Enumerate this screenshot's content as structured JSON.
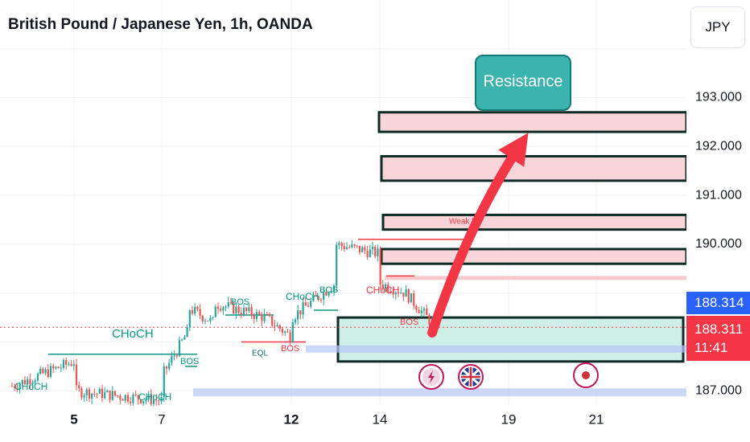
{
  "header": {
    "title": "British Pound / Japanese Yen, 1h, OANDA",
    "currency_button": "JPY"
  },
  "price_tags": {
    "last_price": "188.314",
    "current_price": "188.311",
    "countdown": "11:41"
  },
  "colors": {
    "up": "#26a69a",
    "down": "#ef5350",
    "resistance_fill": "#f8d5d8",
    "support_fill": "#cfeee8",
    "arrow": "#f23645",
    "label_teal": "#089981",
    "label_red": "#f23645",
    "callout_fill": "#3bb3ae"
  },
  "chart_data": {
    "type": "candlestick",
    "symbol": "British Pound / Japanese Yen",
    "timeframe": "1h",
    "exchange": "OANDA",
    "x_ticks": [
      "5",
      "7",
      "12",
      "14",
      "19",
      "21"
    ],
    "x_ticks_bold": [
      "5",
      "12"
    ],
    "y_ticks": [
      "193.000",
      "192.000",
      "191.000",
      "190.000",
      "187.000"
    ],
    "y_range": [
      186.8,
      194.0
    ],
    "last_price": 188.314,
    "current_price": 188.311,
    "price_path": [
      {
        "date": "2024-08-04",
        "price": 187.1
      },
      {
        "date": "2024-08-05",
        "price": 187.6
      },
      {
        "date": "2024-08-05",
        "price": 187.0
      },
      {
        "date": "2024-08-06",
        "price": 186.9
      },
      {
        "date": "2024-08-07",
        "price": 186.8
      },
      {
        "date": "2024-08-07",
        "price": 187.3
      },
      {
        "date": "2024-08-08",
        "price": 188.2
      },
      {
        "date": "2024-08-08",
        "price": 188.7
      },
      {
        "date": "2024-08-09",
        "price": 188.4
      },
      {
        "date": "2024-08-09",
        "price": 188.8
      },
      {
        "date": "2024-08-11",
        "price": 188.5
      },
      {
        "date": "2024-08-12",
        "price": 188.1
      },
      {
        "date": "2024-08-12",
        "price": 188.5
      },
      {
        "date": "2024-08-13",
        "price": 189.2
      },
      {
        "date": "2024-08-13",
        "price": 190.0
      },
      {
        "date": "2024-08-14",
        "price": 189.8
      },
      {
        "date": "2024-08-14",
        "price": 189.2
      },
      {
        "date": "2024-08-15",
        "price": 189.0
      },
      {
        "date": "2024-08-15",
        "price": 189.0
      },
      {
        "date": "2024-08-16",
        "price": 188.4
      }
    ],
    "zones": [
      {
        "type": "resistance",
        "low": 192.3,
        "high": 192.7
      },
      {
        "type": "resistance",
        "low": 191.3,
        "high": 191.8
      },
      {
        "type": "resistance",
        "low": 190.3,
        "high": 190.6
      },
      {
        "type": "resistance",
        "low": 189.6,
        "high": 189.9
      },
      {
        "type": "support",
        "low": 187.6,
        "high": 188.5
      }
    ],
    "annotations": [
      {
        "text": "Resistance"
      },
      {
        "text": "CHoCH"
      },
      {
        "text": "CHoCH"
      },
      {
        "text": "CHoCH"
      },
      {
        "text": "CHoCH"
      },
      {
        "text": "CHoCH"
      },
      {
        "text": "BOS"
      },
      {
        "text": "BOS"
      },
      {
        "text": "BOS"
      },
      {
        "text": "BOS"
      },
      {
        "text": "BOS"
      },
      {
        "text": "EQL"
      },
      {
        "text": "Weak H"
      }
    ],
    "event_icons": [
      "lightning-event-icon",
      "uk-flag-icon",
      "japan-flag-icon"
    ]
  }
}
